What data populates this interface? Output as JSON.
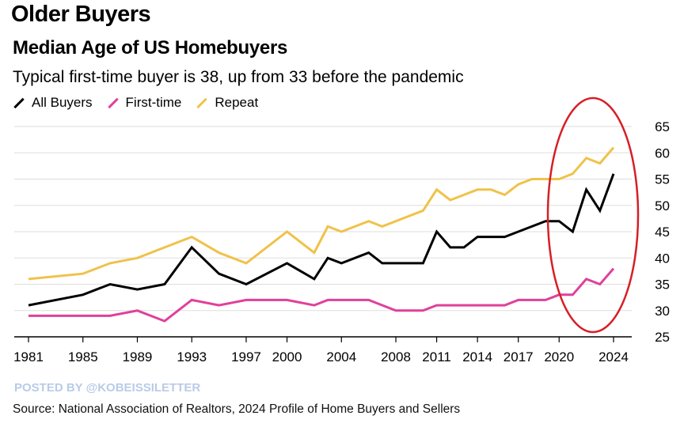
{
  "header": {
    "kicker": "Older Buyers",
    "title": "Median Age of US Homebuyers",
    "subtitle": "Typical first-time buyer is 38, up from 33 before the pandemic"
  },
  "footer": {
    "watermark": "POSTED BY @KOBEISSILETTER",
    "source": "Source: National Association of Realtors, 2024 Profile of Home Buyers and Sellers"
  },
  "colors": {
    "all_buyers": "#000000",
    "first_time": "#e0409b",
    "repeat": "#f0c24a",
    "annotation": "#d61f26",
    "grid": "#dddddd"
  },
  "chart_data": {
    "type": "line",
    "title": "Median Age of US Homebuyers",
    "subtitle": "Typical first-time buyer is 38, up from 33 before the pandemic",
    "xlabel": "",
    "ylabel": "",
    "xlim": [
      1981,
      2024
    ],
    "ylim": [
      25,
      65
    ],
    "x_ticks": [
      1981,
      1985,
      1989,
      1993,
      1997,
      2000,
      2004,
      2008,
      2011,
      2014,
      2017,
      2020,
      2024
    ],
    "y_ticks": [
      25,
      30,
      35,
      40,
      45,
      50,
      55,
      60,
      65
    ],
    "y_axis_side": "right",
    "grid": "horizontal",
    "legend_placement": "top-left",
    "annotation": "red ellipse highlighting 2019-2024",
    "series": [
      {
        "name": "All Buyers",
        "x": [
          1981,
          1985,
          1987,
          1989,
          1991,
          1993,
          1995,
          1997,
          2000,
          2002,
          2003,
          2004,
          2006,
          2007,
          2010,
          2011,
          2012,
          2013,
          2014,
          2016,
          2017,
          2019,
          2020,
          2021,
          2022,
          2023,
          2024
        ],
        "values": [
          31,
          33,
          35,
          34,
          35,
          42,
          37,
          35,
          39,
          36,
          40,
          39,
          41,
          39,
          39,
          45,
          42,
          42,
          44,
          44,
          45,
          47,
          47,
          45,
          53,
          49,
          56
        ]
      },
      {
        "name": "First-time",
        "x": [
          1981,
          1987,
          1989,
          1991,
          1993,
          1995,
          1997,
          2000,
          2002,
          2003,
          2004,
          2006,
          2008,
          2010,
          2011,
          2012,
          2013,
          2014,
          2016,
          2017,
          2019,
          2020,
          2021,
          2022,
          2023,
          2024
        ],
        "values": [
          29,
          29,
          30,
          28,
          32,
          31,
          32,
          32,
          31,
          32,
          32,
          32,
          30,
          30,
          31,
          31,
          31,
          31,
          31,
          32,
          32,
          33,
          33,
          36,
          35,
          38
        ]
      },
      {
        "name": "Repeat",
        "x": [
          1981,
          1985,
          1987,
          1989,
          1991,
          1993,
          1995,
          1997,
          2000,
          2002,
          2003,
          2004,
          2006,
          2007,
          2010,
          2011,
          2012,
          2014,
          2015,
          2016,
          2017,
          2018,
          2020,
          2021,
          2022,
          2023,
          2024
        ],
        "values": [
          36,
          37,
          39,
          40,
          42,
          44,
          41,
          39,
          45,
          41,
          46,
          45,
          47,
          46,
          49,
          53,
          51,
          53,
          53,
          52,
          54,
          55,
          55,
          56,
          59,
          58,
          61
        ]
      }
    ]
  }
}
